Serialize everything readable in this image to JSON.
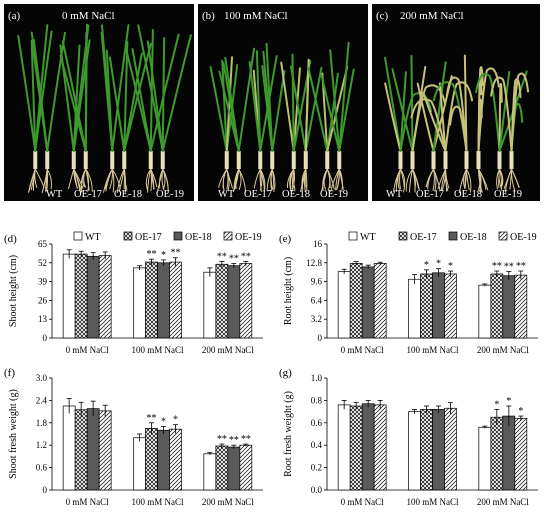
{
  "photos": [
    {
      "letter": "(a)",
      "title": "0 mM NaCl",
      "labels": [
        "WT",
        "OE-17",
        "OE-18",
        "OE-19"
      ],
      "stress": 0
    },
    {
      "letter": "(b)",
      "title": "100 mM NaCl",
      "labels": [
        "WT",
        "OE-17",
        "OE-18",
        "OE-19"
      ],
      "stress": 1
    },
    {
      "letter": "(c)",
      "title": "200 mM NaCl",
      "labels": [
        "WT",
        "OE-17",
        "OE-18",
        "OE-19"
      ],
      "stress": 2
    }
  ],
  "legend": [
    "WT",
    "OE-17",
    "OE-18",
    "OE-19"
  ],
  "chart_data": [
    {
      "panel": "(d)",
      "type": "bar",
      "ylabel": "Shoot height (cm)",
      "categories": [
        "0 mM NaCl",
        "100  mM NaCl",
        "200 mM NaCl"
      ],
      "ylim": [
        0,
        65
      ],
      "ticks": [
        "0",
        "13",
        "26",
        "39",
        "52",
        "65"
      ],
      "tick_values": [
        0,
        13,
        26,
        39,
        52,
        65
      ],
      "series": [
        {
          "name": "WT",
          "values": [
            58,
            48.5,
            45.5
          ],
          "err": [
            3,
            1.5,
            3
          ]
        },
        {
          "name": "OE-17",
          "values": [
            58,
            52.5,
            51
          ],
          "err": [
            2,
            2,
            2
          ]
        },
        {
          "name": "OE-18",
          "values": [
            56.5,
            52,
            50
          ],
          "err": [
            2.5,
            2,
            1.5
          ]
        },
        {
          "name": "OE-19",
          "values": [
            57,
            52.5,
            51.5
          ],
          "err": [
            2.5,
            3,
            1.5
          ]
        }
      ],
      "stars": [
        [
          "",
          "",
          "",
          ""
        ],
        [
          "",
          "**",
          "*",
          "**"
        ],
        [
          "",
          "**",
          "**",
          "**"
        ]
      ]
    },
    {
      "panel": "(e)",
      "type": "bar",
      "ylabel": "Root height (cm)",
      "categories": [
        "0 mM NaCl",
        "100  mM NaCl",
        "200 mM NaCl"
      ],
      "ylim": [
        0,
        16
      ],
      "ticks": [
        "0",
        "3.2",
        "6.4",
        "9.6",
        "12.8",
        "16"
      ],
      "tick_values": [
        0,
        3.2,
        6.4,
        9.6,
        12.8,
        16
      ],
      "series": [
        {
          "name": "WT",
          "values": [
            11.3,
            10,
            9.0
          ],
          "err": [
            0.4,
            0.8,
            0.2
          ]
        },
        {
          "name": "OE-17",
          "values": [
            12.7,
            10.9,
            10.9
          ],
          "err": [
            0.3,
            0.7,
            0.5
          ]
        },
        {
          "name": "OE-18",
          "values": [
            12.1,
            11.1,
            10.6
          ],
          "err": [
            0.3,
            0.7,
            0.7
          ]
        },
        {
          "name": "OE-19",
          "values": [
            12.7,
            10.9,
            10.7
          ],
          "err": [
            0.2,
            0.5,
            0.7
          ]
        }
      ],
      "stars": [
        [
          "",
          "",
          "",
          ""
        ],
        [
          "",
          "*",
          "*",
          "*"
        ],
        [
          "",
          "**",
          "**",
          "**"
        ]
      ]
    },
    {
      "panel": "(f)",
      "type": "bar",
      "ylabel": "Shoot fresh weight (g)",
      "categories": [
        "0 mM NaCl",
        "100  mM NaCl",
        "200 mM NaCl"
      ],
      "ylim": [
        0,
        3.0
      ],
      "ticks": [
        "0",
        "0.6",
        "1.2",
        "1.8",
        "2.4",
        "3.0"
      ],
      "tick_values": [
        0,
        0.6,
        1.2,
        1.8,
        2.4,
        3.0
      ],
      "series": [
        {
          "name": "WT",
          "values": [
            2.25,
            1.4,
            0.97
          ],
          "err": [
            0.2,
            0.1,
            0.03
          ]
        },
        {
          "name": "OE-17",
          "values": [
            2.15,
            1.65,
            1.18
          ],
          "err": [
            0.2,
            0.15,
            0.05
          ]
        },
        {
          "name": "OE-18",
          "values": [
            2.18,
            1.6,
            1.15
          ],
          "err": [
            0.2,
            0.1,
            0.05
          ]
        },
        {
          "name": "OE-19",
          "values": [
            2.12,
            1.63,
            1.2
          ],
          "err": [
            0.15,
            0.12,
            0.03
          ]
        }
      ],
      "stars": [
        [
          "",
          "",
          "",
          ""
        ],
        [
          "",
          "**",
          "*",
          "*"
        ],
        [
          "",
          "**",
          "**",
          "**"
        ]
      ]
    },
    {
      "panel": "(g)",
      "type": "bar",
      "ylabel": "Root fresh weight (g)",
      "categories": [
        "0 mM NaCl",
        "100  mM NaCl",
        "200 mM NaCl"
      ],
      "ylim": [
        0,
        1.0
      ],
      "ticks": [
        "0.0",
        "0.2",
        "0.4",
        "0.6",
        "0.8",
        "1.0"
      ],
      "tick_values": [
        0,
        0.2,
        0.4,
        0.6,
        0.8,
        1.0
      ],
      "series": [
        {
          "name": "WT",
          "values": [
            0.76,
            0.7,
            0.56
          ],
          "err": [
            0.04,
            0.02,
            0.01
          ]
        },
        {
          "name": "OE-17",
          "values": [
            0.75,
            0.72,
            0.65
          ],
          "err": [
            0.03,
            0.03,
            0.07
          ]
        },
        {
          "name": "OE-18",
          "values": [
            0.77,
            0.72,
            0.66
          ],
          "err": [
            0.03,
            0.03,
            0.09
          ]
        },
        {
          "name": "OE-19",
          "values": [
            0.76,
            0.73,
            0.64
          ],
          "err": [
            0.04,
            0.05,
            0.02
          ]
        }
      ],
      "stars": [
        [
          "",
          "",
          "",
          ""
        ],
        [
          "",
          "",
          "",
          ""
        ],
        [
          "",
          "*",
          "*",
          "*"
        ]
      ]
    }
  ]
}
